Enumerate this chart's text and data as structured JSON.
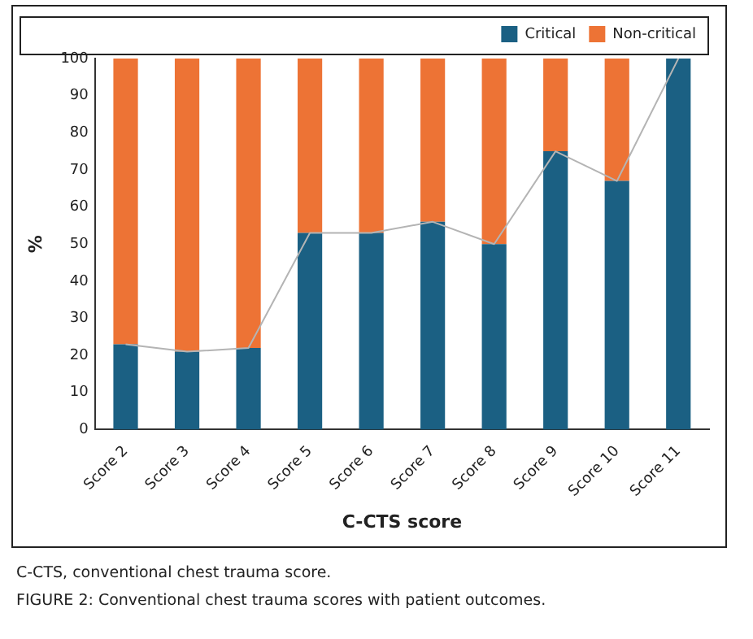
{
  "chart_data": {
    "type": "bar",
    "stacked": true,
    "xlabel": "C-CTS score",
    "ylabel": "%",
    "categories": [
      "Score 2",
      "Score 3",
      "Score 4",
      "Score 5",
      "Score 6",
      "Score 7",
      "Score 8",
      "Score 9",
      "Score 10",
      "Score 11"
    ],
    "series": [
      {
        "name": "Critical",
        "color": "#1b6083",
        "values": [
          23,
          21,
          22,
          53,
          53,
          56,
          50,
          75,
          67,
          100
        ]
      },
      {
        "name": "Non-critical",
        "color": "#ed7335",
        "values": [
          77,
          79,
          78,
          47,
          47,
          44,
          50,
          25,
          33,
          0
        ]
      },
      {
        "type": "line",
        "color": "#b4b4b4",
        "values": [
          23,
          21,
          22,
          53,
          53,
          56,
          50,
          75,
          67,
          100
        ]
      }
    ],
    "ylim": [
      0,
      100
    ],
    "yticks": [
      0,
      10,
      20,
      30,
      40,
      50,
      60,
      70,
      80,
      90,
      100
    ],
    "grid": false,
    "legend": "top right",
    "marker": "none",
    "annotations": [
      "C-CTS, conventional chest trauma score.",
      "FIGURE 2: Conventional chest trauma scores with patient outcomes."
    ]
  }
}
